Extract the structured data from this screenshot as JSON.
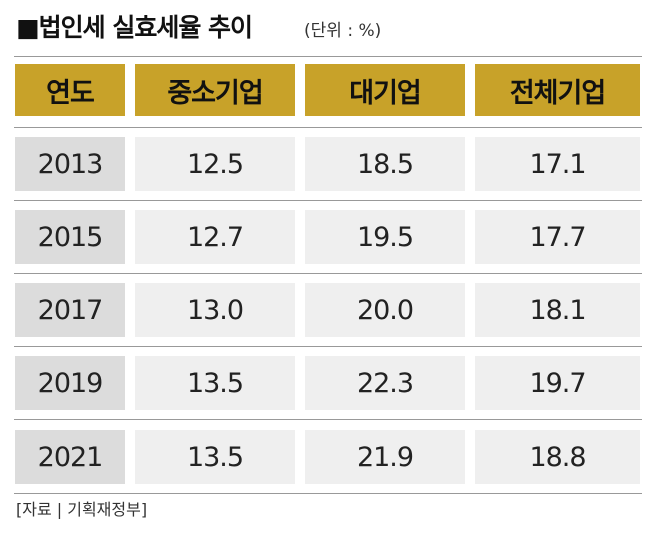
{
  "header": {
    "title": "■법인세 실효세율 추이",
    "unit": "(단위 : %)"
  },
  "table": {
    "columns": [
      "연도",
      "중소기업",
      "대기업",
      "전체기업"
    ],
    "rows": [
      [
        "2013",
        "12.5",
        "18.5",
        "17.1"
      ],
      [
        "2015",
        "12.7",
        "19.5",
        "17.7"
      ],
      [
        "2017",
        "13.0",
        "20.0",
        "18.1"
      ],
      [
        "2019",
        "13.5",
        "22.3",
        "19.7"
      ],
      [
        "2021",
        "13.5",
        "21.9",
        "18.8"
      ]
    ]
  },
  "footer": {
    "source": "[자료 | 기획재정부]"
  }
}
